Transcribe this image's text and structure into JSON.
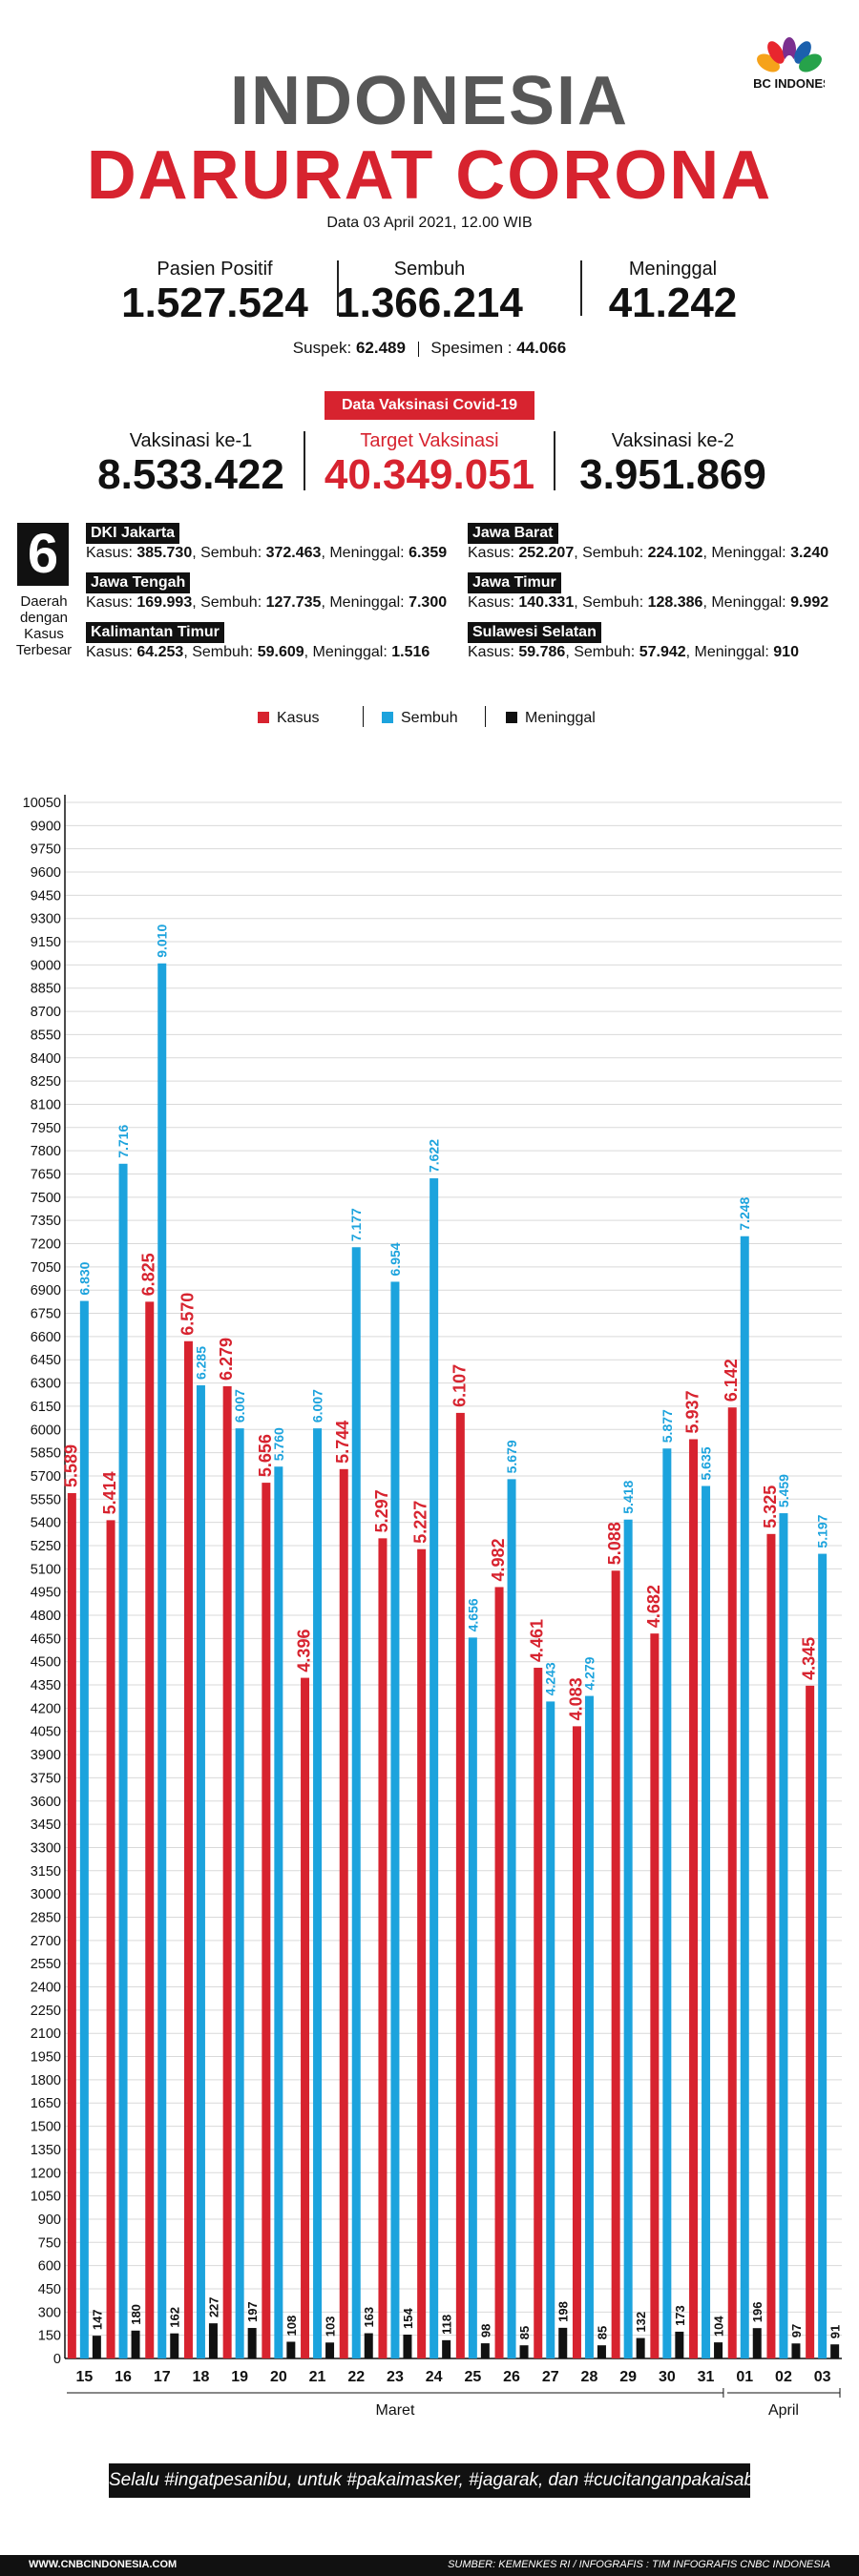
{
  "header": {
    "logo_text": "CNBC INDONESIA",
    "title_line1": "INDONESIA",
    "title_line2": "DARURAT CORONA",
    "date": "Data 03 April 2021, 12.00 WIB"
  },
  "stats": {
    "positif_label": "Pasien Positif",
    "positif_value": "1.527.524",
    "sembuh_label": "Sembuh",
    "sembuh_value": "1.366.214",
    "meninggal_label": "Meninggal",
    "meninggal_value": "41.242",
    "suspek_label": "Suspek:",
    "suspek_value": "62.489",
    "spesimen_label": "Spesimen :",
    "spesimen_value": "44.066"
  },
  "vaccine": {
    "banner": "Data Vaksinasi Covid-19",
    "ke1_label": "Vaksinasi ke-1",
    "ke1_value": "8.533.422",
    "target_label": "Target Vaksinasi",
    "target_value": "40.349.051",
    "ke2_label": "Vaksinasi ke-2",
    "ke2_value": "3.951.869"
  },
  "regions": {
    "big_number": "6",
    "caption": "Daerah dengan Kasus Terbesar",
    "kasus_label": "Kasus:",
    "sembuh_label": "Sembuh:",
    "meninggal_label": "Meninggal:",
    "items": [
      {
        "name": "DKI Jakarta",
        "kasus": "385.730",
        "sembuh": "372.463",
        "meninggal": "6.359"
      },
      {
        "name": "Jawa Barat",
        "kasus": "252.207",
        "sembuh": "224.102",
        "meninggal": "3.240"
      },
      {
        "name": "Jawa Tengah",
        "kasus": "169.993",
        "sembuh": "127.735",
        "meninggal": "7.300"
      },
      {
        "name": "Jawa Timur",
        "kasus": "140.331",
        "sembuh": "128.386",
        "meninggal": "9.992"
      },
      {
        "name": "Kalimantan Timur",
        "kasus": "64.253",
        "sembuh": "59.609",
        "meninggal": "1.516"
      },
      {
        "name": "Sulawesi Selatan",
        "kasus": "59.786",
        "sembuh": "57.942",
        "meninggal": "910"
      }
    ]
  },
  "colors": {
    "kasus": "#d7232f",
    "sembuh": "#1ca3dd",
    "meninggal": "#111111"
  },
  "chart_data": {
    "type": "bar",
    "categories": [
      "15",
      "16",
      "17",
      "18",
      "19",
      "20",
      "21",
      "22",
      "23",
      "24",
      "25",
      "26",
      "27",
      "28",
      "29",
      "30",
      "31",
      "01",
      "02",
      "03"
    ],
    "groups": [
      {
        "label": "Maret",
        "categories": [
          "15",
          "16",
          "17",
          "18",
          "19",
          "20",
          "21",
          "22",
          "23",
          "24",
          "25",
          "26",
          "27",
          "28",
          "29",
          "30",
          "31"
        ]
      },
      {
        "label": "April",
        "categories": [
          "01",
          "02",
          "03"
        ]
      }
    ],
    "series": [
      {
        "name": "Kasus",
        "values": [
          5589,
          5414,
          6825,
          6570,
          6279,
          5656,
          4396,
          5744,
          5297,
          5227,
          6107,
          4982,
          4461,
          4083,
          5088,
          4682,
          5937,
          6142,
          5325,
          4345
        ],
        "labels": [
          "5.589",
          "5.414",
          "6.825",
          "6.570",
          "6.279",
          "5.656",
          "4.396",
          "5.744",
          "5.297",
          "5.227",
          "6.107",
          "4.982",
          "4.461",
          "4.083",
          "5.088",
          "4.682",
          "5.937",
          "6.142",
          "5.325",
          "4.345"
        ]
      },
      {
        "name": "Sembuh",
        "values": [
          6830,
          7716,
          9010,
          6285,
          6007,
          5760,
          6007,
          7177,
          6954,
          7622,
          4656,
          5679,
          4243,
          4279,
          5418,
          5877,
          5635,
          7248,
          5459,
          5197
        ],
        "labels": [
          "6.830",
          "7.716",
          "9.010",
          "6.285",
          "6.007",
          "5.760",
          "6.007",
          "7.177",
          "6.954",
          "7.622",
          "4.656",
          "5.679",
          "4.243",
          "4.279",
          "5.418",
          "5.877",
          "5.635",
          "7.248",
          "5.459",
          "5.197"
        ]
      },
      {
        "name": "Meninggal",
        "values": [
          147,
          180,
          162,
          227,
          197,
          108,
          103,
          163,
          154,
          118,
          98,
          85,
          198,
          85,
          132,
          173,
          104,
          196,
          97,
          91
        ],
        "labels": [
          "147",
          "180",
          "162",
          "227",
          "197",
          "108",
          "103",
          "163",
          "154",
          "118",
          "98",
          "85",
          "198",
          "85",
          "132",
          "173",
          "104",
          "196",
          "97",
          "91"
        ]
      }
    ],
    "ylim": [
      0,
      10050
    ],
    "ytick_step": 150,
    "grid": true,
    "legend": "top-center"
  },
  "footer": {
    "slogan": "Selalu #ingatpesanibu, untuk #pakaimasker, #jagarak, dan #cucitanganpakaisabun",
    "site": "WWW.CNBCINDONESIA.COM",
    "source": "SUMBER: KEMENKES RI / INFOGRAFIS : TIM INFOGRAFIS CNBC INDONESIA"
  }
}
